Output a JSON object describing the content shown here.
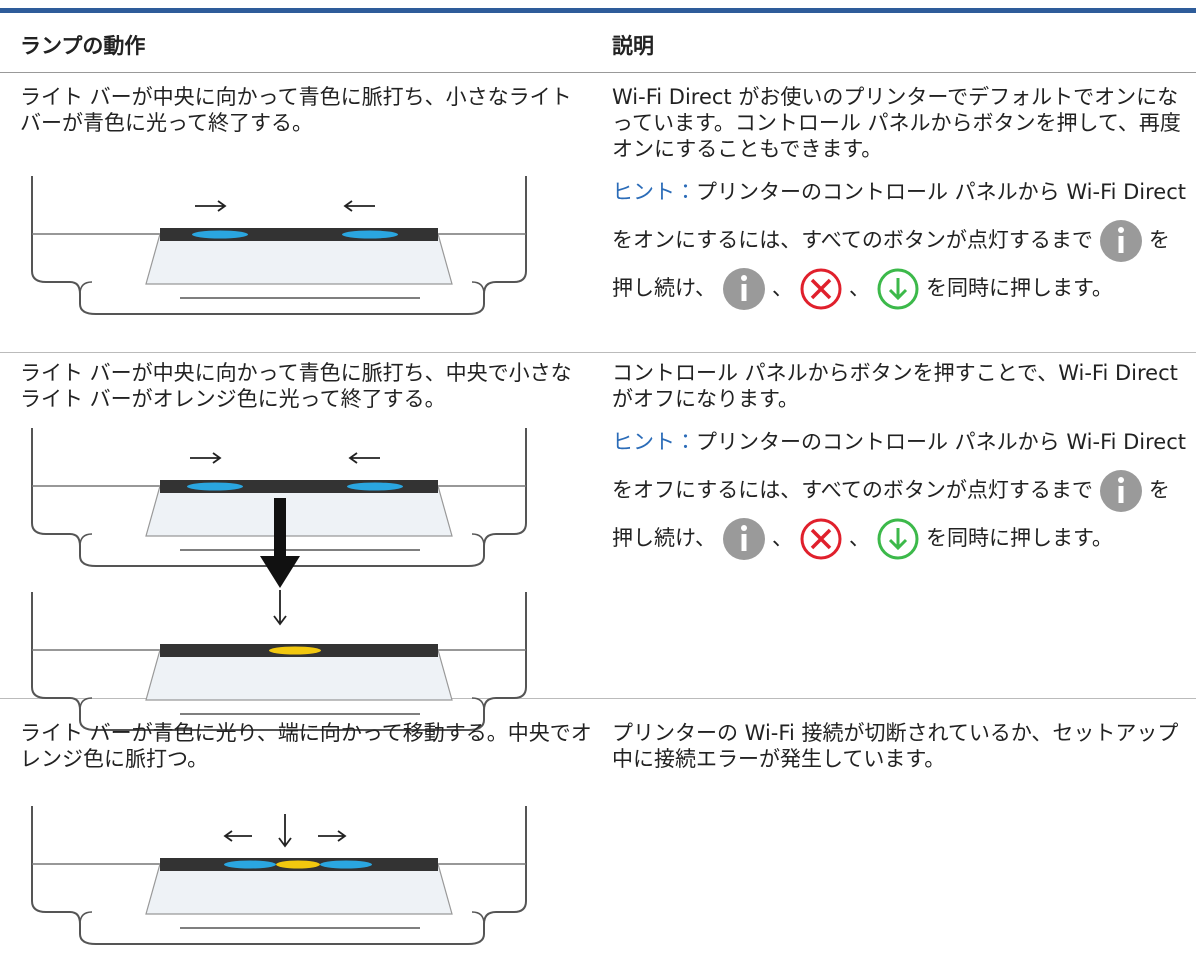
{
  "table": {
    "headers": [
      "ランプの動作",
      "説明"
    ],
    "rows": [
      {
        "behavior": "ライト バーが中央に向かって青色に脈打ち、小さなライト バーが青色に光って終了する。",
        "description": "Wi-Fi Direct がお使いのプリンターでデフォルトでオンになっています。コントロール パネルからボタンを押して、再度オンにすることもできます。",
        "tip": {
          "label": "ヒント：",
          "parts": [
            "プリンターのコントロール パネルから Wi-Fi Direct をオンにするには、すべてのボタンが点灯するまで",
            "を押し続け、",
            "、",
            "、",
            "を同時に押します。"
          ]
        }
      },
      {
        "behavior": "ライト バーが中央に向かって青色に脈打ち、中央で小さなライト バーがオレンジ色に光って終了する。",
        "description": "コントロール パネルからボタンを押すことで、Wi-Fi Direct がオフになります。",
        "tip": {
          "label": "ヒント：",
          "parts": [
            "プリンターのコントロール パネルから Wi-Fi Direct をオフにするには、すべてのボタンが点灯するまで",
            "を押し続け、",
            "、",
            "、",
            "を同時に押します。"
          ]
        }
      },
      {
        "behavior": "ライト バーが青色に光り、端に向かって移動する。中央でオレンジ色に脈打つ。",
        "description": "プリンターの Wi-Fi 接続が切断されているか、セットアップ中に接続エラーが発生しています。"
      }
    ]
  }
}
